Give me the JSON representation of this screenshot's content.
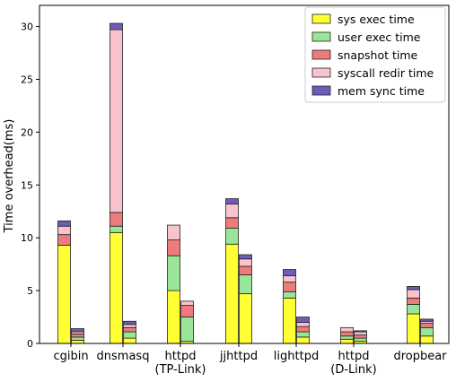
{
  "chart_data": {
    "type": "bar",
    "subtype": "stacked-grouped",
    "title": "",
    "xlabel": "",
    "ylabel": "Time overhead(ms)",
    "ylim": [
      0,
      32
    ],
    "yticks": [
      0,
      5,
      10,
      15,
      20,
      25,
      30
    ],
    "grid": false,
    "legend_position": "top-right",
    "categories": [
      [
        "cgibin"
      ],
      [
        "dnsmasq"
      ],
      [
        "httpd",
        "(TP-Link)"
      ],
      [
        "jjhttpd"
      ],
      [
        "lighttpd"
      ],
      [
        "httpd",
        "(D-Link)"
      ],
      [
        "dropbear"
      ]
    ],
    "series": [
      {
        "name": "sys exec time",
        "color": "#ffff33"
      },
      {
        "name": "user exec time",
        "color": "#99e699"
      },
      {
        "name": "snapshot time",
        "color": "#ee7b7b"
      },
      {
        "name": "syscall redir time",
        "color": "#f7c3cc"
      },
      {
        "name": "mem sync time",
        "color": "#6e5db8"
      }
    ],
    "groups": [
      [
        {
          "values": [
            9.3,
            0,
            1.0,
            0.8,
            0.5
          ]
        },
        {
          "values": [
            0.3,
            0.3,
            0.3,
            0.2,
            0.3
          ]
        }
      ],
      [
        {
          "values": [
            10.5,
            0.6,
            1.3,
            17.3,
            0.6
          ]
        },
        {
          "values": [
            0.5,
            0.6,
            0.4,
            0.3,
            0.3
          ]
        }
      ],
      [
        {
          "values": [
            5.0,
            3.3,
            1.5,
            1.4,
            0
          ]
        },
        {
          "values": [
            0.2,
            2.3,
            1.1,
            0.4,
            0
          ]
        }
      ],
      [
        {
          "values": [
            9.4,
            1.5,
            1.0,
            1.3,
            0.5
          ]
        },
        {
          "values": [
            4.7,
            1.8,
            0.8,
            0.7,
            0.4
          ]
        }
      ],
      [
        {
          "values": [
            4.3,
            0.6,
            0.9,
            0.6,
            0.6
          ]
        },
        {
          "values": [
            0.6,
            0.5,
            0.5,
            0.4,
            0.5
          ]
        }
      ],
      [
        {
          "values": [
            0.4,
            0.3,
            0.4,
            0.4,
            0
          ]
        },
        {
          "values": [
            0.2,
            0.3,
            0.3,
            0.3,
            0.1
          ]
        }
      ],
      [
        {
          "values": [
            2.8,
            0.9,
            0.6,
            0.8,
            0.3
          ]
        },
        {
          "values": [
            0.7,
            0.8,
            0.4,
            0.2,
            0.2
          ]
        }
      ]
    ]
  }
}
